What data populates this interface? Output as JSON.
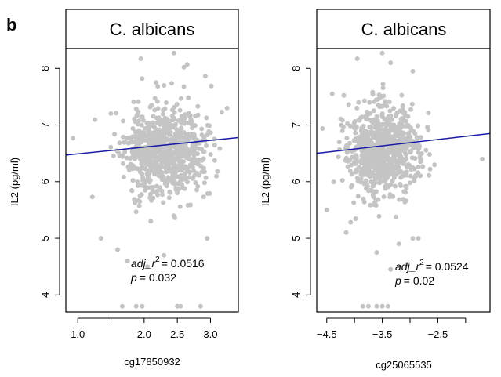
{
  "panel_label": "b",
  "chart_data": [
    {
      "type": "scatter",
      "title": "C. albicans",
      "xlabel": "cg17850932",
      "ylabel": "IL2  (pg/ml)",
      "xlim": [
        0.82,
        3.42
      ],
      "ylim": [
        3.7,
        8.35
      ],
      "xticks": [
        1.0,
        1.5,
        2.0,
        2.5,
        3.0
      ],
      "xtick_labels": [
        "1.0",
        "",
        "2.0",
        "2.5",
        "3.0"
      ],
      "yticks": [
        4,
        5,
        6,
        7,
        8
      ],
      "ytick_labels": [
        "4",
        "5",
        "6",
        "7",
        "8"
      ],
      "fit_line": {
        "x": [
          0.82,
          3.42
        ],
        "y": [
          6.47,
          6.78
        ],
        "color": "#1a1aa6"
      },
      "point_color": "#c4c4c4",
      "cloud": {
        "n": 820,
        "x_mean": 2.3,
        "x_sd": 0.3,
        "y_mean": 6.55,
        "y_sd": 0.38,
        "seed": 11
      },
      "points": [
        {
          "x": 1.95,
          "y": 8.17
        },
        {
          "x": 2.45,
          "y": 8.27
        },
        {
          "x": 2.65,
          "y": 8.07
        },
        {
          "x": 2.6,
          "y": 8.02
        },
        {
          "x": 1.97,
          "y": 7.82
        },
        {
          "x": 2.3,
          "y": 7.7
        },
        {
          "x": 0.93,
          "y": 6.77
        },
        {
          "x": 3.25,
          "y": 7.3
        },
        {
          "x": 1.35,
          "y": 5.0
        },
        {
          "x": 1.6,
          "y": 4.8
        },
        {
          "x": 1.75,
          "y": 4.6
        },
        {
          "x": 2.05,
          "y": 4.5
        },
        {
          "x": 2.3,
          "y": 4.7
        },
        {
          "x": 2.95,
          "y": 5.0
        },
        {
          "x": 1.22,
          "y": 5.73
        },
        {
          "x": 1.67,
          "y": 3.8
        },
        {
          "x": 1.88,
          "y": 3.8
        },
        {
          "x": 1.97,
          "y": 3.8
        },
        {
          "x": 2.5,
          "y": 3.8
        },
        {
          "x": 2.55,
          "y": 3.8
        },
        {
          "x": 2.85,
          "y": 3.8
        },
        {
          "x": 2.45,
          "y": 5.4
        },
        {
          "x": 2.1,
          "y": 5.3
        }
      ],
      "annotation": {
        "adj_r2_label": "adj_r",
        "superscript": "2",
        "adj_r2_value": "= 0.0516",
        "p_label": "p",
        "p_value": "= 0.032"
      },
      "grid": false,
      "legend": "none"
    },
    {
      "type": "scatter",
      "title": "C. albicans",
      "xlabel": "cg25065535",
      "ylabel": "IL2  (pg/ml)",
      "xlim": [
        -4.68,
        -1.56
      ],
      "ylim": [
        3.7,
        8.35
      ],
      "xticks": [
        -4.5,
        -4.0,
        -3.5,
        -3.0,
        -2.5,
        -2.0
      ],
      "xtick_labels": [
        "−4.5",
        "",
        "−3.5",
        "",
        "−2.5",
        ""
      ],
      "yticks": [
        4,
        5,
        6,
        7,
        8
      ],
      "ytick_labels": [
        "4",
        "5",
        "6",
        "7",
        "8"
      ],
      "fit_line": {
        "x": [
          -4.68,
          -1.56
        ],
        "y": [
          6.5,
          6.85
        ],
        "color": "#1a1aa6"
      },
      "point_color": "#c4c4c4",
      "cloud": {
        "n": 820,
        "x_mean": -3.5,
        "x_sd": 0.32,
        "y_mean": 6.55,
        "y_sd": 0.38,
        "seed": 29
      },
      "points": [
        {
          "x": -3.95,
          "y": 8.17
        },
        {
          "x": -3.5,
          "y": 8.27
        },
        {
          "x": -3.35,
          "y": 8.1
        },
        {
          "x": -2.95,
          "y": 7.95
        },
        {
          "x": -4.4,
          "y": 7.55
        },
        {
          "x": -1.7,
          "y": 6.4
        },
        {
          "x": -4.5,
          "y": 5.5
        },
        {
          "x": -3.85,
          "y": 3.8
        },
        {
          "x": -3.75,
          "y": 3.8
        },
        {
          "x": -3.6,
          "y": 3.8
        },
        {
          "x": -3.5,
          "y": 3.8
        },
        {
          "x": -3.4,
          "y": 3.8
        },
        {
          "x": -2.95,
          "y": 5.0
        },
        {
          "x": -2.85,
          "y": 5.0
        },
        {
          "x": -3.6,
          "y": 4.75
        },
        {
          "x": -3.2,
          "y": 4.9
        },
        {
          "x": -3.05,
          "y": 4.55
        },
        {
          "x": -4.15,
          "y": 5.1
        },
        {
          "x": -3.35,
          "y": 4.45
        }
      ],
      "annotation": {
        "adj_r2_label": "adj_r",
        "superscript": "2",
        "adj_r2_value": "= 0.0524",
        "p_label": "p",
        "p_value": "= 0.02"
      },
      "grid": false,
      "legend": "none"
    }
  ]
}
